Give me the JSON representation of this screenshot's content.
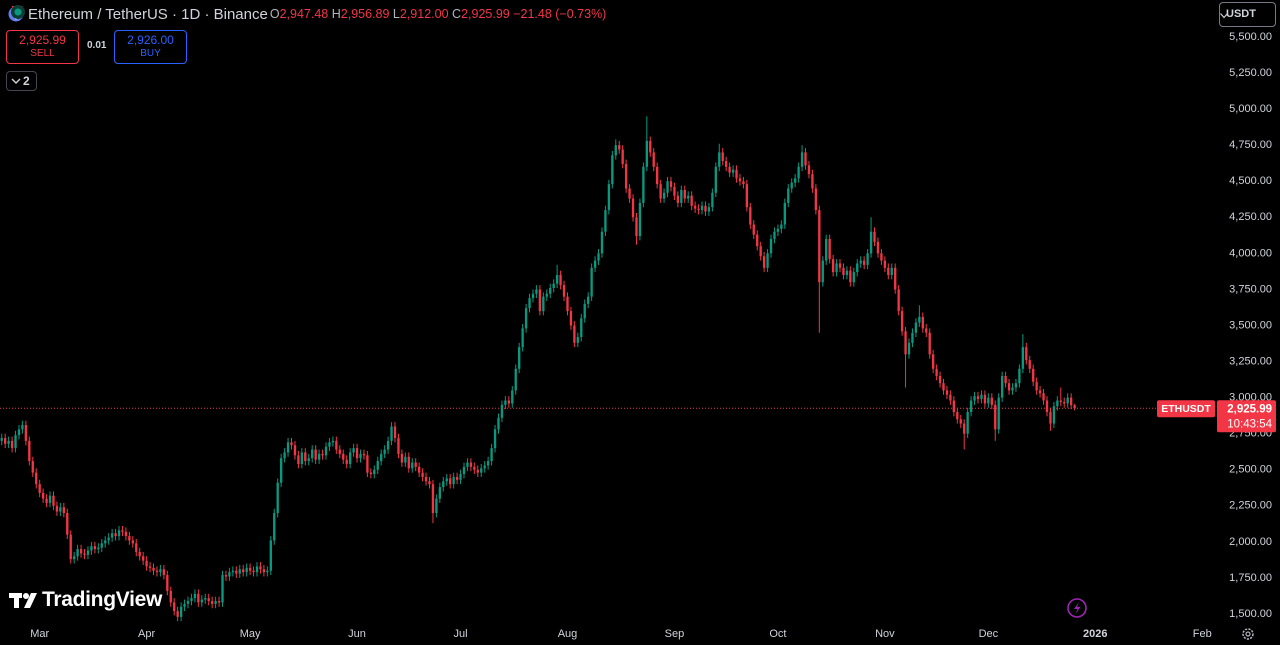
{
  "header": {
    "symbol": "Ethereum / TetherUS · 1D · Binance",
    "ohlc": [
      {
        "key": "O",
        "value": "2,947.48"
      },
      {
        "key": "H",
        "value": "2,956.89"
      },
      {
        "key": "L",
        "value": "2,912.00"
      },
      {
        "key": "C",
        "value": "2,925.99"
      }
    ],
    "change": "−21.48 (−0.73%)"
  },
  "trade": {
    "sell_price": "2,925.99",
    "sell_label": "SELL",
    "spread": "0.01",
    "buy_price": "2,926.00",
    "buy_label": "BUY"
  },
  "indicators_count": "2",
  "currency": "USDT",
  "logo": "TradingView",
  "chart_data": {
    "type": "candlestick",
    "up_color": "#089981",
    "down_color": "#f23645",
    "symbol_label": "ETHUSDT",
    "last_price_label": "2,925.99",
    "countdown": "10:43:54",
    "xlim": [
      -0.5,
      351.7
    ],
    "xticks": [
      {
        "value": 11,
        "label": "Mar"
      },
      {
        "value": 42,
        "label": "Apr"
      },
      {
        "value": 72,
        "label": "May"
      },
      {
        "value": 103,
        "label": "Jun"
      },
      {
        "value": 133,
        "label": "Jul"
      },
      {
        "value": 164,
        "label": "Aug"
      },
      {
        "value": 195,
        "label": "Sep"
      },
      {
        "value": 225,
        "label": "Oct"
      },
      {
        "value": 256,
        "label": "Nov"
      },
      {
        "value": 286,
        "label": "Dec"
      },
      {
        "value": 317,
        "label": "2026"
      },
      {
        "value": 348,
        "label": "Feb"
      }
    ],
    "ylim": [
      1444.5,
      5756.5
    ],
    "yticks": [
      {
        "value": 1500,
        "label": "1,500.00"
      },
      {
        "value": 1750,
        "label": "1,750.00"
      },
      {
        "value": 2000,
        "label": "2,000.00"
      },
      {
        "value": 2250,
        "label": "2,250.00"
      },
      {
        "value": 2500,
        "label": "2,500.00"
      },
      {
        "value": 2750,
        "label": "2,750.00"
      },
      {
        "value": 3000,
        "label": "3,000.00"
      },
      {
        "value": 3250,
        "label": "3,250.00"
      },
      {
        "value": 3500,
        "label": "3,500.00"
      },
      {
        "value": 3750,
        "label": "3,750.00"
      },
      {
        "value": 4000,
        "label": "4,000.00"
      },
      {
        "value": 4250,
        "label": "4,250.00"
      },
      {
        "value": 4500,
        "label": "4,500.00"
      },
      {
        "value": 4750,
        "label": "4,750.00"
      },
      {
        "value": 5000,
        "label": "5,000.00"
      },
      {
        "value": 5250,
        "label": "5,250.00"
      },
      {
        "value": 5500,
        "label": "5,500.00"
      }
    ],
    "open": [
      2700,
      2720,
      2680,
      2700,
      2650,
      2740,
      2780,
      2810,
      2700,
      2560,
      2480,
      2400,
      2340,
      2300,
      2270,
      2320,
      2250,
      2210,
      2240,
      2200,
      2050,
      1880,
      1900,
      1950,
      1920,
      1910,
      1940,
      1970,
      1950,
      1960,
      1990,
      2010,
      2030,
      2060,
      2040,
      2080,
      2070,
      2040,
      2010,
      1990,
      1930,
      1900,
      1870,
      1830,
      1820,
      1800,
      1790,
      1810,
      1770,
      1660,
      1580,
      1520,
      1480,
      1550,
      1570,
      1590,
      1610,
      1640,
      1580,
      1600,
      1610,
      1590,
      1570,
      1590,
      1580,
      1770,
      1760,
      1790,
      1800,
      1780,
      1810,
      1790,
      1820,
      1800,
      1790,
      1830,
      1810,
      1790,
      1800,
      2010,
      2200,
      2410,
      2580,
      2620,
      2690,
      2670,
      2600,
      2540,
      2620,
      2560,
      2580,
      2640,
      2570,
      2610,
      2600,
      2660,
      2690,
      2700,
      2640,
      2610,
      2570,
      2540,
      2620,
      2650,
      2580,
      2610,
      2600,
      2480,
      2470,
      2500,
      2560,
      2610,
      2640,
      2700,
      2800,
      2720,
      2610,
      2550,
      2590,
      2510,
      2550,
      2520,
      2480,
      2450,
      2420,
      2400,
      2200,
      2300,
      2380,
      2420,
      2440,
      2400,
      2450,
      2430,
      2470,
      2520,
      2550,
      2520,
      2500,
      2480,
      2510,
      2530,
      2560,
      2650,
      2780,
      2860,
      2950,
      2980,
      2960,
      3050,
      3200,
      3350,
      3480,
      3620,
      3690,
      3720,
      3750,
      3600,
      3700,
      3720,
      3760,
      3790,
      3850,
      3780,
      3700,
      3600,
      3500,
      3380,
      3420,
      3550,
      3650,
      3700,
      3900,
      3950,
      4000,
      4150,
      4300,
      4480,
      4680,
      4750,
      4720,
      4620,
      4450,
      4380,
      4250,
      4120,
      4350,
      4600,
      4780,
      4700,
      4600,
      4480,
      4380,
      4420,
      4500,
      4460,
      4400,
      4350,
      4440,
      4380,
      4400,
      4330,
      4310,
      4300,
      4330,
      4290,
      4320,
      4420,
      4600,
      4700,
      4640,
      4600,
      4560,
      4580,
      4520,
      4500,
      4480,
      4320,
      4200,
      4130,
      4050,
      3980,
      3900,
      4000,
      4100,
      4150,
      4170,
      4200,
      4350,
      4450,
      4490,
      4520,
      4600,
      4700,
      4610,
      4550,
      4450,
      4300,
      3800,
      3950,
      4100,
      3960,
      3870,
      3930,
      3900,
      3850,
      3880,
      3800,
      3870,
      3930,
      3950,
      3920,
      4000,
      4150,
      4080,
      4000,
      3950,
      3900,
      3850,
      3900,
      3750,
      3600,
      3460,
      3300,
      3380,
      3450,
      3520,
      3560,
      3480,
      3450,
      3300,
      3200,
      3150,
      3100,
      3050,
      3020,
      2980,
      2900,
      2850,
      2820,
      2750,
      2900,
      2980,
      3010,
      2990,
      3020,
      2960,
      3000,
      2950,
      2780,
      3000,
      3150,
      3100,
      3050,
      3070,
      3100,
      3200,
      3350,
      3260,
      3200,
      3110,
      3050,
      3030,
      2980,
      2900,
      2820,
      2940,
      2980,
      2970,
      2960,
      3000,
      2947.48
    ],
    "high": [
      2750,
      2750,
      2730,
      2730,
      2770,
      2810,
      2840,
      2840,
      2730,
      2590,
      2510,
      2430,
      2370,
      2330,
      2350,
      2350,
      2280,
      2270,
      2270,
      2230,
      2080,
      1930,
      1980,
      1980,
      1950,
      1970,
      2000,
      2000,
      1990,
      2020,
      2040,
      2060,
      2090,
      2090,
      2110,
      2110,
      2100,
      2070,
      2040,
      2020,
      1960,
      1930,
      1900,
      1860,
      1850,
      1830,
      1840,
      1840,
      1800,
      1690,
      1610,
      1550,
      1580,
      1600,
      1620,
      1640,
      1670,
      1670,
      1630,
      1640,
      1640,
      1620,
      1620,
      1620,
      1800,
      1800,
      1820,
      1830,
      1830,
      1840,
      1840,
      1850,
      1850,
      1830,
      1860,
      1860,
      1840,
      1830,
      2040,
      2230,
      2440,
      2610,
      2650,
      2720,
      2720,
      2700,
      2630,
      2650,
      2650,
      2610,
      2670,
      2670,
      2640,
      2640,
      2690,
      2720,
      2730,
      2730,
      2670,
      2640,
      2600,
      2650,
      2680,
      2680,
      2640,
      2640,
      2630,
      2510,
      2530,
      2590,
      2640,
      2670,
      2730,
      2830,
      2830,
      2750,
      2640,
      2620,
      2620,
      2580,
      2580,
      2550,
      2510,
      2480,
      2450,
      2430,
      2330,
      2410,
      2450,
      2470,
      2470,
      2480,
      2480,
      2500,
      2550,
      2580,
      2580,
      2550,
      2530,
      2540,
      2560,
      2590,
      2680,
      2810,
      2890,
      2980,
      3010,
      3010,
      3080,
      3230,
      3380,
      3510,
      3650,
      3720,
      3750,
      3780,
      3780,
      3730,
      3750,
      3790,
      3820,
      3920,
      3880,
      3810,
      3730,
      3630,
      3530,
      3450,
      3580,
      3680,
      3730,
      3930,
      3980,
      4030,
      4180,
      4330,
      4510,
      4710,
      4790,
      4780,
      4750,
      4650,
      4480,
      4410,
      4280,
      4380,
      4630,
      4950,
      4810,
      4730,
      4630,
      4510,
      4450,
      4530,
      4530,
      4490,
      4430,
      4470,
      4470,
      4430,
      4430,
      4360,
      4340,
      4360,
      4360,
      4350,
      4450,
      4630,
      4760,
      4730,
      4670,
      4630,
      4610,
      4610,
      4550,
      4530,
      4510,
      4350,
      4230,
      4160,
      4080,
      4010,
      4030,
      4130,
      4180,
      4200,
      4230,
      4380,
      4480,
      4520,
      4550,
      4630,
      4750,
      4730,
      4640,
      4580,
      4480,
      4330,
      3980,
      4130,
      4130,
      3990,
      3960,
      3960,
      3930,
      3910,
      3910,
      3900,
      3960,
      3980,
      3980,
      4030,
      4250,
      4180,
      4110,
      4030,
      3980,
      3930,
      3930,
      3930,
      3780,
      3630,
      3490,
      3410,
      3480,
      3550,
      3640,
      3590,
      3510,
      3480,
      3330,
      3230,
      3180,
      3130,
      3080,
      3050,
      3010,
      2930,
      2880,
      2850,
      2930,
      3010,
      3040,
      3040,
      3050,
      3050,
      3030,
      3030,
      2980,
      3030,
      3180,
      3180,
      3130,
      3100,
      3130,
      3230,
      3440,
      3380,
      3290,
      3230,
      3140,
      3080,
      3060,
      3010,
      2930,
      2970,
      3010,
      3070,
      3000,
      3030,
      3030,
      2956.89
    ],
    "low": [
      2670,
      2650,
      2650,
      2620,
      2620,
      2710,
      2750,
      2670,
      2530,
      2450,
      2370,
      2310,
      2270,
      2240,
      2240,
      2220,
      2180,
      2180,
      2170,
      2020,
      1850,
      1850,
      1870,
      1890,
      1880,
      1880,
      1910,
      1920,
      1920,
      1930,
      1960,
      1980,
      2000,
      2010,
      2010,
      2040,
      2010,
      1980,
      1960,
      1900,
      1870,
      1840,
      1800,
      1790,
      1770,
      1760,
      1760,
      1740,
      1630,
      1550,
      1490,
      1450,
      1450,
      1520,
      1540,
      1560,
      1580,
      1550,
      1550,
      1570,
      1560,
      1540,
      1540,
      1550,
      1550,
      1730,
      1730,
      1760,
      1750,
      1750,
      1760,
      1760,
      1770,
      1760,
      1760,
      1780,
      1760,
      1760,
      1770,
      1980,
      2170,
      2380,
      2550,
      2590,
      2640,
      2570,
      2510,
      2510,
      2530,
      2530,
      2550,
      2540,
      2540,
      2570,
      2570,
      2630,
      2660,
      2610,
      2580,
      2540,
      2510,
      2510,
      2590,
      2550,
      2550,
      2570,
      2450,
      2440,
      2440,
      2470,
      2530,
      2580,
      2610,
      2670,
      2690,
      2580,
      2520,
      2520,
      2480,
      2480,
      2490,
      2450,
      2420,
      2390,
      2370,
      2130,
      2170,
      2270,
      2350,
      2390,
      2370,
      2370,
      2400,
      2400,
      2440,
      2490,
      2490,
      2470,
      2450,
      2450,
      2480,
      2500,
      2530,
      2620,
      2750,
      2830,
      2920,
      2930,
      2930,
      3020,
      3170,
      3320,
      3450,
      3590,
      3660,
      3690,
      3570,
      3570,
      3670,
      3690,
      3730,
      3760,
      3750,
      3670,
      3570,
      3470,
      3350,
      3350,
      3390,
      3520,
      3620,
      3670,
      3870,
      3920,
      3970,
      4120,
      4270,
      4450,
      4650,
      4690,
      4590,
      4420,
      4350,
      4220,
      4060,
      4090,
      4320,
      4570,
      4670,
      4570,
      4450,
      4350,
      4350,
      4390,
      4430,
      4370,
      4320,
      4320,
      4350,
      4350,
      4300,
      4280,
      4270,
      4270,
      4260,
      4260,
      4290,
      4390,
      4570,
      4610,
      4570,
      4530,
      4530,
      4490,
      4470,
      4450,
      4290,
      4170,
      4100,
      4020,
      3950,
      3870,
      3870,
      3970,
      4070,
      4120,
      4140,
      4170,
      4320,
      4420,
      4460,
      4490,
      4570,
      4580,
      4520,
      4420,
      4270,
      3450,
      3770,
      3920,
      3930,
      3840,
      3840,
      3870,
      3820,
      3820,
      3770,
      3770,
      3840,
      3900,
      3890,
      3890,
      3970,
      4050,
      3970,
      3920,
      3870,
      3820,
      3820,
      3720,
      3570,
      3430,
      3070,
      3270,
      3350,
      3420,
      3490,
      3450,
      3420,
      3270,
      3170,
      3120,
      3070,
      3020,
      2990,
      2950,
      2870,
      2820,
      2790,
      2640,
      2720,
      2870,
      2950,
      2960,
      2960,
      2930,
      2930,
      2920,
      2700,
      2750,
      2970,
      3070,
      3020,
      3020,
      3040,
      3070,
      3170,
      3230,
      3170,
      3080,
      3020,
      3000,
      2950,
      2870,
      2770,
      2790,
      2910,
      2940,
      2930,
      2930,
      2920,
      2912
    ],
    "close": [
      2720,
      2680,
      2700,
      2650,
      2740,
      2780,
      2810,
      2700,
      2560,
      2480,
      2400,
      2340,
      2300,
      2270,
      2320,
      2250,
      2210,
      2240,
      2200,
      2050,
      1880,
      1900,
      1950,
      1920,
      1910,
      1940,
      1970,
      1950,
      1960,
      1990,
      2010,
      2030,
      2060,
      2040,
      2080,
      2070,
      2040,
      2010,
      1990,
      1930,
      1900,
      1870,
      1830,
      1820,
      1800,
      1790,
      1810,
      1770,
      1660,
      1580,
      1520,
      1480,
      1550,
      1570,
      1590,
      1610,
      1640,
      1580,
      1600,
      1610,
      1590,
      1570,
      1590,
      1580,
      1770,
      1760,
      1790,
      1800,
      1780,
      1810,
      1790,
      1820,
      1800,
      1790,
      1830,
      1810,
      1790,
      1800,
      2010,
      2200,
      2410,
      2580,
      2620,
      2690,
      2670,
      2600,
      2540,
      2620,
      2560,
      2580,
      2640,
      2570,
      2610,
      2600,
      2660,
      2690,
      2700,
      2640,
      2610,
      2570,
      2540,
      2620,
      2650,
      2580,
      2610,
      2600,
      2480,
      2470,
      2500,
      2560,
      2610,
      2640,
      2700,
      2800,
      2720,
      2610,
      2550,
      2590,
      2510,
      2550,
      2520,
      2480,
      2450,
      2420,
      2400,
      2200,
      2300,
      2380,
      2420,
      2440,
      2400,
      2450,
      2430,
      2470,
      2520,
      2550,
      2520,
      2500,
      2480,
      2510,
      2530,
      2560,
      2650,
      2780,
      2860,
      2950,
      2980,
      2960,
      3050,
      3200,
      3350,
      3480,
      3620,
      3690,
      3720,
      3750,
      3600,
      3700,
      3720,
      3760,
      3790,
      3850,
      3780,
      3700,
      3600,
      3500,
      3380,
      3420,
      3550,
      3650,
      3700,
      3900,
      3950,
      4000,
      4150,
      4300,
      4480,
      4680,
      4750,
      4720,
      4620,
      4450,
      4380,
      4250,
      4120,
      4350,
      4600,
      4780,
      4700,
      4600,
      4480,
      4380,
      4420,
      4500,
      4460,
      4400,
      4350,
      4440,
      4380,
      4400,
      4330,
      4310,
      4300,
      4330,
      4290,
      4320,
      4420,
      4600,
      4700,
      4640,
      4600,
      4560,
      4580,
      4520,
      4500,
      4480,
      4320,
      4200,
      4130,
      4050,
      3980,
      3900,
      4000,
      4100,
      4150,
      4170,
      4200,
      4350,
      4450,
      4490,
      4520,
      4600,
      4700,
      4610,
      4550,
      4450,
      4300,
      3800,
      3950,
      4100,
      3960,
      3870,
      3930,
      3900,
      3850,
      3880,
      3800,
      3870,
      3930,
      3950,
      3920,
      4000,
      4150,
      4080,
      4000,
      3950,
      3900,
      3850,
      3900,
      3750,
      3600,
      3460,
      3300,
      3380,
      3450,
      3520,
      3560,
      3480,
      3450,
      3300,
      3200,
      3150,
      3100,
      3050,
      3020,
      2980,
      2900,
      2850,
      2820,
      2750,
      2900,
      2980,
      3010,
      2990,
      3020,
      2960,
      3000,
      2950,
      2780,
      3000,
      3150,
      3100,
      3050,
      3070,
      3100,
      3200,
      3350,
      3260,
      3200,
      3110,
      3050,
      3030,
      2980,
      2900,
      2820,
      2940,
      2980,
      2970,
      2960,
      3000,
      2947.48,
      2925.99
    ]
  }
}
